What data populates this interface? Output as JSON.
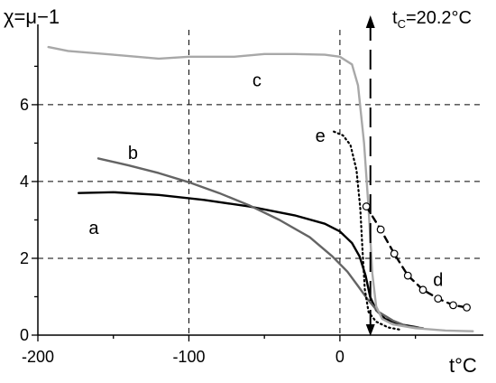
{
  "chart_data": {
    "type": "line",
    "ylabel": "χ=μ−1",
    "xlabel": "t°C",
    "xlim": [
      -200,
      95
    ],
    "ylim": [
      0,
      7.95
    ],
    "x_ticks": [
      -200,
      -100,
      0
    ],
    "x_tick_labels": [
      "-200",
      "-100",
      "0"
    ],
    "y_ticks": [
      0,
      2,
      4,
      6
    ],
    "y_tick_labels": [
      "0",
      "2",
      "4",
      "6"
    ],
    "grid": {
      "dashed_vertical": [
        -100,
        0
      ],
      "dashed_horizontal": [
        2,
        4,
        6
      ]
    },
    "annotation": {
      "t": "t",
      "sub": "C",
      "value": "=20.2°C",
      "x": 20.2
    },
    "series": [
      {
        "name": "a",
        "color": "#000000",
        "style": "solid",
        "label_at": [
          -163,
          2.8
        ],
        "points": [
          [
            -173,
            3.7
          ],
          [
            -150,
            3.72
          ],
          [
            -120,
            3.65
          ],
          [
            -90,
            3.52
          ],
          [
            -60,
            3.35
          ],
          [
            -30,
            3.12
          ],
          [
            -10,
            2.9
          ],
          [
            0,
            2.7
          ],
          [
            8,
            2.4
          ],
          [
            13,
            2.05
          ],
          [
            17,
            1.55
          ],
          [
            20,
            1.0
          ],
          [
            24,
            0.65
          ],
          [
            30,
            0.42
          ],
          [
            40,
            0.28
          ],
          [
            52,
            0.2
          ]
        ]
      },
      {
        "name": "b",
        "color": "#646464",
        "style": "solid",
        "label_at": [
          -137,
          4.75
        ],
        "points": [
          [
            -160,
            4.6
          ],
          [
            -140,
            4.42
          ],
          [
            -120,
            4.22
          ],
          [
            -100,
            3.98
          ],
          [
            -80,
            3.7
          ],
          [
            -60,
            3.38
          ],
          [
            -40,
            3.0
          ],
          [
            -20,
            2.55
          ],
          [
            -5,
            2.05
          ],
          [
            5,
            1.65
          ],
          [
            12,
            1.28
          ],
          [
            18,
            0.95
          ],
          [
            25,
            0.62
          ],
          [
            35,
            0.38
          ],
          [
            45,
            0.22
          ],
          [
            55,
            0.18
          ]
        ]
      },
      {
        "name": "c",
        "color": "#a8a8a8",
        "style": "solid",
        "label_at": [
          -55,
          6.65
        ],
        "points": [
          [
            -193,
            7.5
          ],
          [
            -180,
            7.4
          ],
          [
            -150,
            7.3
          ],
          [
            -120,
            7.2
          ],
          [
            -100,
            7.25
          ],
          [
            -70,
            7.25
          ],
          [
            -50,
            7.32
          ],
          [
            -30,
            7.32
          ],
          [
            -10,
            7.3
          ],
          [
            0,
            7.25
          ],
          [
            8,
            7.05
          ],
          [
            12,
            6.5
          ],
          [
            16,
            5.0
          ],
          [
            19,
            3.3
          ],
          [
            21.5,
            1.6
          ],
          [
            24,
            0.75
          ],
          [
            28,
            0.42
          ],
          [
            35,
            0.28
          ],
          [
            50,
            0.18
          ],
          [
            70,
            0.12
          ],
          [
            88,
            0.1
          ]
        ]
      },
      {
        "name": "d",
        "color": "#000000",
        "style": "dashed",
        "marker": "circle",
        "label_at": [
          65,
          1.45
        ],
        "points": [
          [
            17.5,
            3.35
          ],
          [
            27,
            2.75
          ],
          [
            36,
            2.12
          ],
          [
            45,
            1.55
          ],
          [
            55,
            1.18
          ],
          [
            65,
            0.95
          ],
          [
            75,
            0.78
          ],
          [
            84,
            0.72
          ]
        ]
      },
      {
        "name": "e",
        "color": "#000000",
        "style": "dotted",
        "label_at": [
          -13,
          5.2
        ],
        "points": [
          [
            -4,
            5.3
          ],
          [
            2,
            5.2
          ],
          [
            7,
            4.95
          ],
          [
            11,
            4.3
          ],
          [
            13.5,
            3.3
          ],
          [
            15,
            2.2
          ],
          [
            16.5,
            1.2
          ],
          [
            19,
            0.6
          ],
          [
            24,
            0.35
          ],
          [
            32,
            0.2
          ],
          [
            40,
            0.14
          ]
        ]
      }
    ]
  }
}
